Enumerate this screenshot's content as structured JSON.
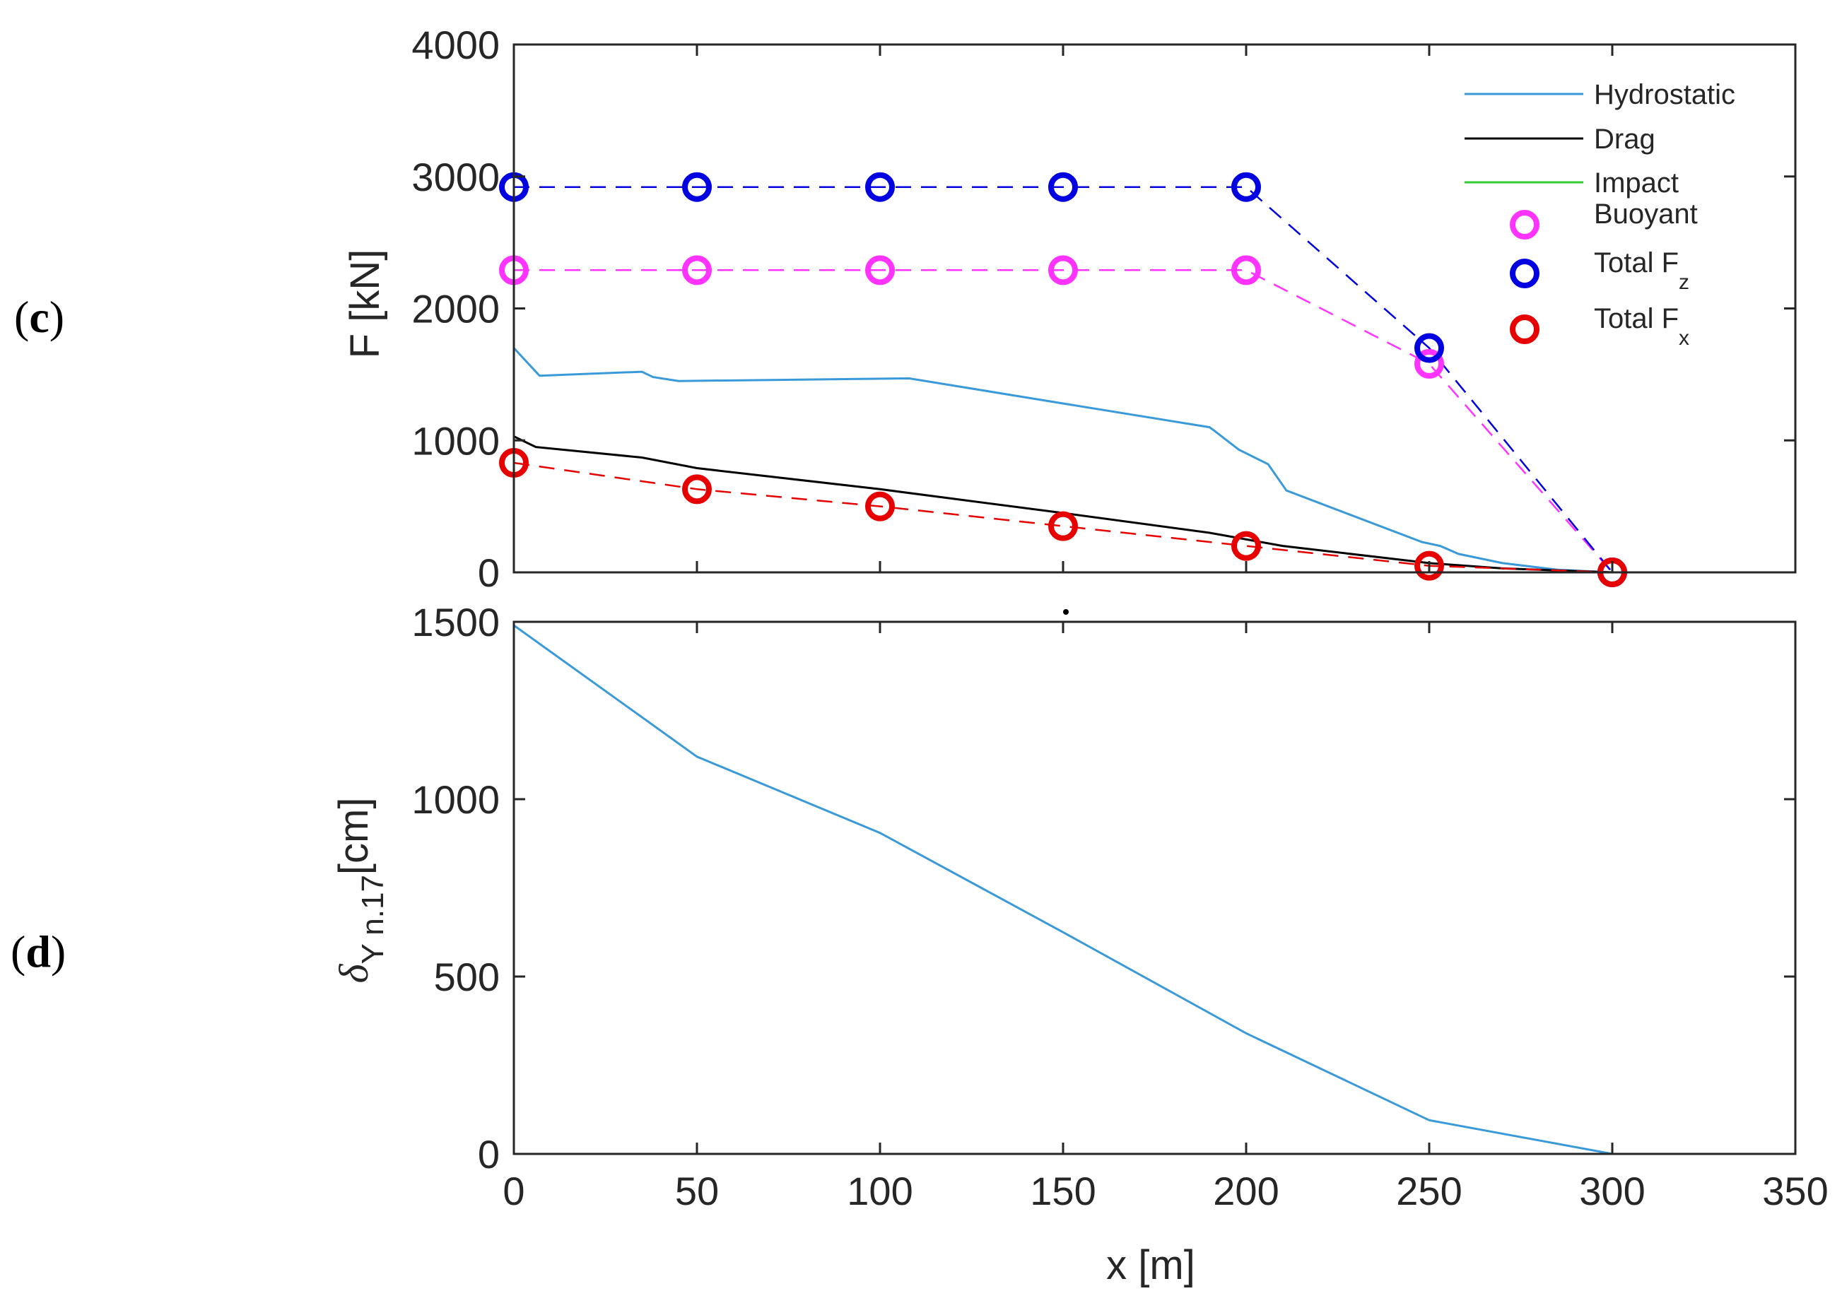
{
  "panels": {
    "c": "(c)",
    "c_letter": "c",
    "d": "(d)",
    "d_letter": "d"
  },
  "chart_data": [
    {
      "type": "line",
      "panel": "c",
      "xlabel": "",
      "ylabel": "F [kN]",
      "xlim": [
        0,
        350
      ],
      "ylim": [
        0,
        4000
      ],
      "xticks": [
        0,
        50,
        100,
        150,
        200,
        250,
        300,
        350
      ],
      "yticks": [
        0,
        1000,
        2000,
        3000,
        4000
      ],
      "xtick_labels_visible": false,
      "grid": false,
      "legend": "top-right",
      "series": [
        {
          "name": "Hydrostatic",
          "style": "solid",
          "color": "#3a9ad9",
          "points": [
            [
              0,
              1700
            ],
            [
              7,
              1490
            ],
            [
              35,
              1520
            ],
            [
              38,
              1480
            ],
            [
              45,
              1450
            ],
            [
              108,
              1470
            ],
            [
              150,
              1280
            ],
            [
              190,
              1100
            ],
            [
              191,
              1080
            ],
            [
              198,
              930
            ],
            [
              206,
              820
            ],
            [
              211,
              620
            ],
            [
              248,
              230
            ],
            [
              253,
              200
            ],
            [
              258,
              140
            ],
            [
              270,
              70
            ],
            [
              285,
              20
            ],
            [
              300,
              0
            ]
          ]
        },
        {
          "name": "Drag",
          "style": "solid",
          "color": "#000000",
          "points": [
            [
              0,
              1030
            ],
            [
              6,
              950
            ],
            [
              35,
              870
            ],
            [
              50,
              790
            ],
            [
              100,
              630
            ],
            [
              150,
              450
            ],
            [
              190,
              300
            ],
            [
              210,
              200
            ],
            [
              250,
              70
            ],
            [
              270,
              30
            ],
            [
              300,
              0
            ]
          ]
        },
        {
          "name": "Impact",
          "style": "solid",
          "color": "#33cc33",
          "points": [
            [
              0,
              0
            ],
            [
              350,
              0
            ]
          ]
        },
        {
          "name": "Buoyant",
          "style": "dashed-circles",
          "color": "#ff33ff",
          "points": [
            [
              0,
              2290
            ],
            [
              50,
              2290
            ],
            [
              100,
              2290
            ],
            [
              150,
              2290
            ],
            [
              200,
              2290
            ],
            [
              250,
              1580
            ],
            [
              300,
              0
            ]
          ]
        },
        {
          "name": "Total F_z",
          "style": "dashed-circles",
          "color": "#0000e0",
          "points": [
            [
              0,
              2920
            ],
            [
              50,
              2920
            ],
            [
              100,
              2920
            ],
            [
              150,
              2920
            ],
            [
              200,
              2920
            ],
            [
              250,
              1700
            ],
            [
              300,
              0
            ]
          ]
        },
        {
          "name": "Total F_x",
          "style": "dashed-circles",
          "color": "#e60000",
          "points": [
            [
              0,
              830
            ],
            [
              50,
              630
            ],
            [
              100,
              500
            ],
            [
              150,
              350
            ],
            [
              200,
              200
            ],
            [
              250,
              50
            ],
            [
              300,
              0
            ]
          ]
        }
      ],
      "legend_entries": [
        {
          "label": "Hydrostatic",
          "sub": ""
        },
        {
          "label": "Drag",
          "sub": ""
        },
        {
          "label": "Impact",
          "sub": ""
        },
        {
          "label": "Buoyant",
          "sub": ""
        },
        {
          "label": "Total F",
          "sub": "z"
        },
        {
          "label": "Total F",
          "sub": "x"
        }
      ]
    },
    {
      "type": "line",
      "panel": "d",
      "xlabel": "x [m]",
      "ylabel_main": "δ",
      "ylabel_sub": "Y n.17",
      "ylabel_unit": "[cm]",
      "xlim": [
        0,
        350
      ],
      "ylim": [
        0,
        1500
      ],
      "xticks": [
        0,
        50,
        100,
        150,
        200,
        250,
        300,
        350
      ],
      "yticks": [
        0,
        500,
        1000,
        1500
      ],
      "grid": false,
      "series": [
        {
          "name": "δ_Y n.17",
          "style": "solid",
          "color": "#3a9ad9",
          "points": [
            [
              0,
              1490
            ],
            [
              50,
              1120
            ],
            [
              100,
              905
            ],
            [
              150,
              625
            ],
            [
              200,
              340
            ],
            [
              250,
              95
            ],
            [
              300,
              0
            ]
          ]
        }
      ]
    }
  ],
  "colors": {
    "axis": "#262626",
    "hydrostatic": "#3a9ad9",
    "drag": "#000000",
    "impact": "#33cc33",
    "buoyant": "#ff33ff",
    "total_fz": "#0000e0",
    "total_fx": "#e60000"
  }
}
